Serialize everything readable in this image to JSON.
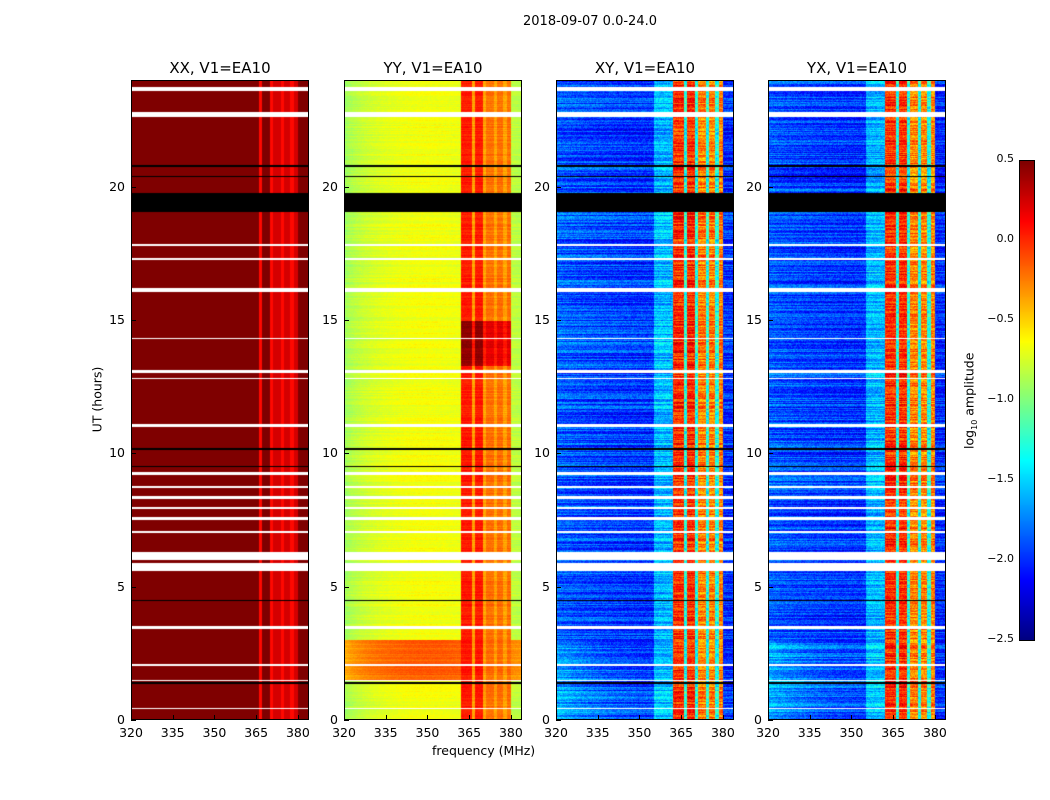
{
  "chart_data": {
    "type": "heatmap",
    "title": "2018-09-07 0.0-24.0",
    "ylabel": "UT (hours)",
    "xlabel": "frequency (MHz)",
    "xlim": [
      320,
      384
    ],
    "ylim": [
      0,
      24
    ],
    "xticks": [
      "320",
      "335",
      "350",
      "365",
      "380"
    ],
    "xtick_values": [
      320,
      335,
      350,
      365,
      380
    ],
    "yticks": [
      "0",
      "5",
      "10",
      "15",
      "20"
    ],
    "ytick_values": [
      0,
      5,
      10,
      15,
      20
    ],
    "panels": [
      {
        "title": "XX, V1=EA10",
        "base_level": 0.5,
        "band_level": 0.5,
        "noise": 0.0
      },
      {
        "title": "YY, V1=EA10",
        "base_level": -0.8,
        "band_level": 0.05,
        "noise": 0.08
      },
      {
        "title": "XY, V1=EA10",
        "base_level": -2.0,
        "band_level": 0.0,
        "noise": 0.3
      },
      {
        "title": "YX, V1=EA10",
        "base_level": -2.0,
        "band_level": 0.0,
        "noise": 0.3
      }
    ],
    "band_mhz": [
      362,
      380
    ],
    "band_gaps_mhz": [
      366.5,
      370.5,
      374.5,
      378
    ],
    "enhanced_hours": [
      1.5,
      3.0
    ],
    "flagged_hours": [
      [
        23.65,
        23.8
      ],
      [
        22.65,
        22.85
      ],
      [
        17.8,
        17.9
      ],
      [
        17.3,
        17.35
      ],
      [
        16.1,
        16.25
      ],
      [
        14.3,
        14.35
      ],
      [
        13.05,
        13.15
      ],
      [
        12.8,
        12.85
      ],
      [
        11.0,
        11.1
      ],
      [
        9.2,
        9.3
      ],
      [
        8.7,
        8.8
      ],
      [
        8.3,
        8.4
      ],
      [
        7.9,
        8.0
      ],
      [
        7.5,
        7.6
      ],
      [
        7.0,
        7.1
      ],
      [
        6.0,
        6.3
      ],
      [
        5.6,
        5.9
      ],
      [
        3.4,
        3.5
      ],
      [
        2.0,
        2.1
      ],
      [
        1.45,
        1.5
      ],
      [
        0.4,
        0.45
      ]
    ],
    "blank_hours": [
      [
        19.1,
        19.8
      ],
      [
        20.4,
        20.45
      ],
      [
        20.8,
        20.85
      ],
      [
        9.5,
        9.55
      ],
      [
        10.15,
        10.2
      ],
      [
        4.45,
        4.5
      ],
      [
        1.35,
        1.4
      ]
    ],
    "colorbar": {
      "label": "log10 amplitude",
      "label_main": "log",
      "label_sub": "10",
      "label_rest": " amplitude",
      "range": [
        -2.5,
        0.5
      ],
      "ticks": [
        "0.5",
        "0.0",
        "−0.5",
        "−1.0",
        "−1.5",
        "−2.0",
        "−2.5"
      ],
      "tick_values": [
        0.5,
        0.0,
        -0.5,
        -1.0,
        -1.5,
        -2.0,
        -2.5
      ],
      "colormap": "jet"
    }
  }
}
